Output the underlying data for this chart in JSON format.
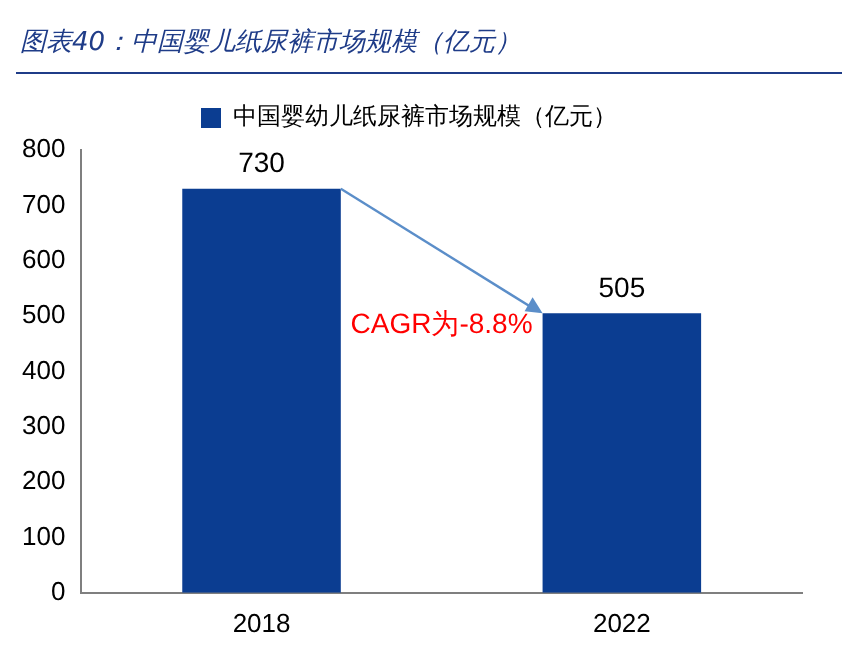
{
  "chart_data": {
    "type": "bar",
    "title": "图表40：中国婴儿纸尿裤市场规模（亿元）",
    "categories": [
      "2018",
      "2022"
    ],
    "series": [
      {
        "name": "中国婴幼儿纸尿裤市场规模（亿元）",
        "color": "#0b3d91",
        "values": [
          730,
          505
        ]
      }
    ],
    "ylim": [
      0,
      800
    ],
    "yticks": [
      0,
      100,
      200,
      300,
      400,
      500,
      600,
      700,
      800
    ],
    "grid": false,
    "legend": "top",
    "data_labels": true,
    "annotations": [
      "CAGR为-8.8%"
    ]
  }
}
